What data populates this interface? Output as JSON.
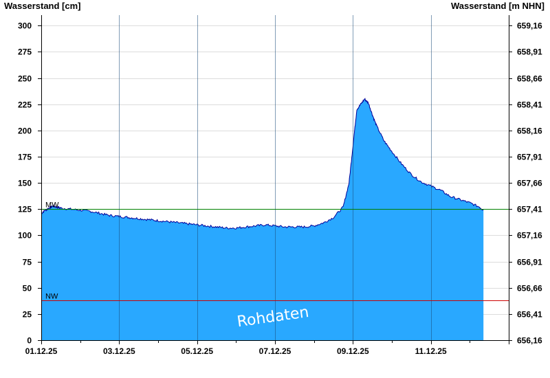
{
  "chart_data": {
    "type": "area",
    "y_label_left": "Wasserstand [cm]",
    "y_label_right": "Wasserstand [m NHN]",
    "ylim": [
      0,
      310
    ],
    "y_ticks_left": [
      "0",
      "25",
      "50",
      "75",
      "100",
      "125",
      "150",
      "175",
      "200",
      "225",
      "250",
      "275",
      "300"
    ],
    "y_ticks_right": [
      "656,16",
      "656,41",
      "656,66",
      "656,91",
      "657,16",
      "657,41",
      "657,66",
      "657,91",
      "658,16",
      "658,41",
      "658,66",
      "658,91",
      "659,16"
    ],
    "x_tick_labels": [
      "01.12.25",
      "03.12.25",
      "05.12.25",
      "07.12.25",
      "09.12.25",
      "11.12.25"
    ],
    "x_range_days": [
      0,
      12
    ],
    "grid": true,
    "reference_lines": [
      {
        "label": "MW",
        "value": 125,
        "color": "#008000"
      },
      {
        "label": "NW",
        "value": 38,
        "color": "#cc0000"
      }
    ],
    "watermark": "Rohdaten",
    "fill_color": "#29a8ff",
    "line_color": "#000099",
    "series": [
      {
        "x": [
          0,
          0.1,
          0.2,
          0.3,
          0.4,
          0.5,
          0.75,
          1.0,
          1.25,
          1.5,
          1.75,
          2.0,
          2.25,
          2.5,
          2.75,
          3.0,
          3.25,
          3.5,
          3.75,
          4.0,
          4.25,
          4.5,
          4.75,
          5.0,
          5.25,
          5.5,
          5.75,
          6.0,
          6.25,
          6.5,
          6.75,
          7.0,
          7.25,
          7.5,
          7.75,
          7.9,
          8.0,
          8.1,
          8.2,
          8.3,
          8.4,
          8.5,
          8.6,
          8.8,
          9.0,
          9.25,
          9.5,
          9.75,
          10.0,
          10.25,
          10.5,
          10.75,
          11.0,
          11.25,
          11.35
        ],
        "y": [
          121,
          124,
          126,
          128,
          127,
          126,
          125,
          124,
          123,
          121,
          119,
          118,
          117,
          116,
          115,
          114,
          113,
          112,
          111,
          110,
          109,
          108,
          107,
          107,
          108,
          109,
          110,
          109,
          108,
          108,
          108,
          109,
          112,
          117,
          127,
          150,
          185,
          220,
          225,
          230,
          226,
          215,
          205,
          190,
          180,
          168,
          158,
          151,
          147,
          143,
          137,
          134,
          131,
          127,
          124
        ]
      }
    ]
  }
}
